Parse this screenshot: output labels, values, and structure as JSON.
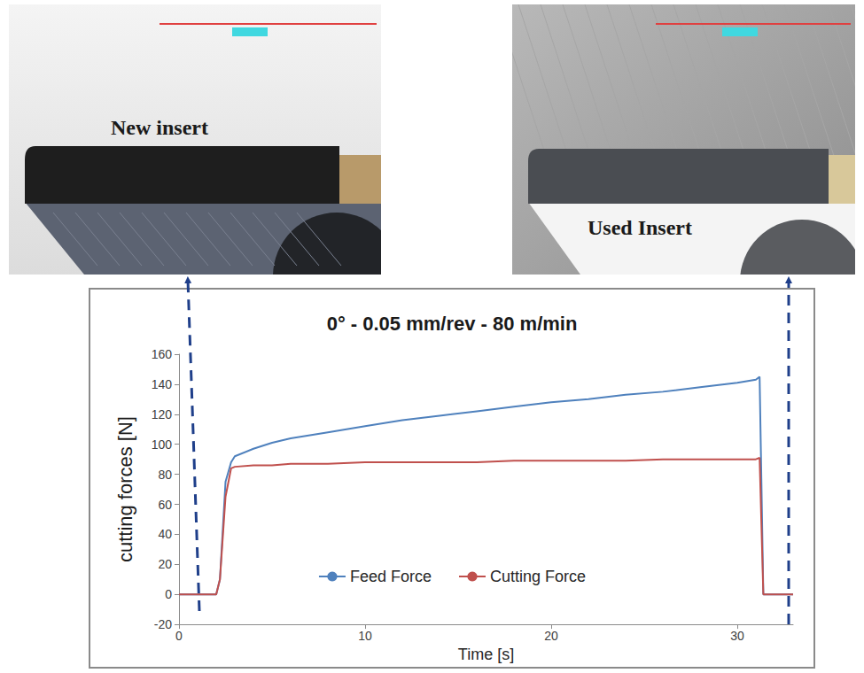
{
  "chart_data": {
    "type": "line",
    "title": "0° - 0.05 mm/rev - 80 m/min",
    "x_label": "Time [s]",
    "y_label": "cutting forces [N]",
    "x": [
      0,
      1,
      2,
      2.2,
      2.5,
      2.8,
      3,
      4,
      5,
      6,
      8,
      10,
      12,
      14,
      16,
      18,
      20,
      22,
      24,
      26,
      28,
      30,
      31,
      31.2,
      31.4,
      32,
      33
    ],
    "series": [
      {
        "name": "Feed Force",
        "color": "#4f81bd",
        "values": [
          0,
          0,
          0,
          10,
          75,
          88,
          92,
          97,
          101,
          104,
          108,
          112,
          116,
          119,
          122,
          125,
          128,
          130,
          133,
          135,
          138,
          141,
          143,
          145,
          0,
          0,
          0
        ]
      },
      {
        "name": "Cutting Force",
        "color": "#c0504d",
        "values": [
          0,
          0,
          0,
          10,
          65,
          84,
          85,
          86,
          86,
          87,
          87,
          88,
          88,
          88,
          88,
          89,
          89,
          89,
          89,
          90,
          90,
          90,
          90,
          91,
          0,
          0,
          0
        ]
      }
    ],
    "xlim": [
      0,
      33
    ],
    "xticks": [
      0,
      10,
      20,
      30
    ],
    "ylim": [
      -20,
      160
    ],
    "yticks": [
      -20,
      0,
      20,
      40,
      60,
      80,
      100,
      120,
      140,
      160
    ],
    "grid": false,
    "legend": "bottom"
  },
  "images": [
    {
      "label": "New insert"
    },
    {
      "label": "Used Insert"
    }
  ]
}
